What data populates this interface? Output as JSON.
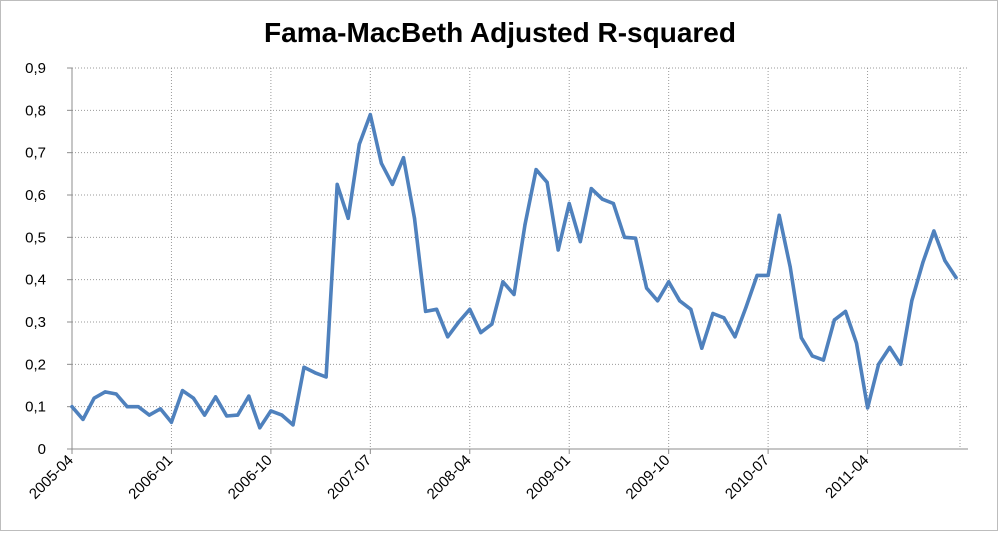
{
  "chart_data": {
    "type": "line",
    "title": "Fama-MacBeth Adjusted R-squared",
    "xlabel": "",
    "ylabel": "",
    "ylim": [
      0,
      0.9
    ],
    "yticks": [
      "0",
      "0,1",
      "0,2",
      "0,3",
      "0,4",
      "0,5",
      "0,6",
      "0,7",
      "0,8",
      "0,9"
    ],
    "xtick_labels": [
      "2005-04",
      "2006-01",
      "2006-10",
      "2007-07",
      "2008-04",
      "2009-01",
      "2009-10",
      "2010-07",
      "2011-04"
    ],
    "x_start": "2005-04",
    "grid": true,
    "legend": "none",
    "line_color": "#4F81BD",
    "series": [
      {
        "values": [
          0.1,
          0.07,
          0.12,
          0.135,
          0.13,
          0.1,
          0.1,
          0.08,
          0.095,
          0.063,
          0.138,
          0.12,
          0.08,
          0.123,
          0.078,
          0.08,
          0.125,
          0.05,
          0.09,
          0.08,
          0.057,
          0.193,
          0.18,
          0.17,
          0.625,
          0.545,
          0.72,
          0.79,
          0.675,
          0.625,
          0.688,
          0.545,
          0.325,
          0.33,
          0.265,
          0.3,
          0.33,
          0.275,
          0.295,
          0.395,
          0.365,
          0.53,
          0.66,
          0.63,
          0.47,
          0.58,
          0.49,
          0.615,
          0.59,
          0.58,
          0.5,
          0.498,
          0.38,
          0.35,
          0.395,
          0.35,
          0.33,
          0.238,
          0.32,
          0.31,
          0.265,
          0.335,
          0.41,
          0.41,
          0.552,
          0.43,
          0.263,
          0.22,
          0.21,
          0.305,
          0.325,
          0.25,
          0.097,
          0.2,
          0.24,
          0.2,
          0.35,
          0.44,
          0.515,
          0.445,
          0.405
        ]
      }
    ]
  }
}
